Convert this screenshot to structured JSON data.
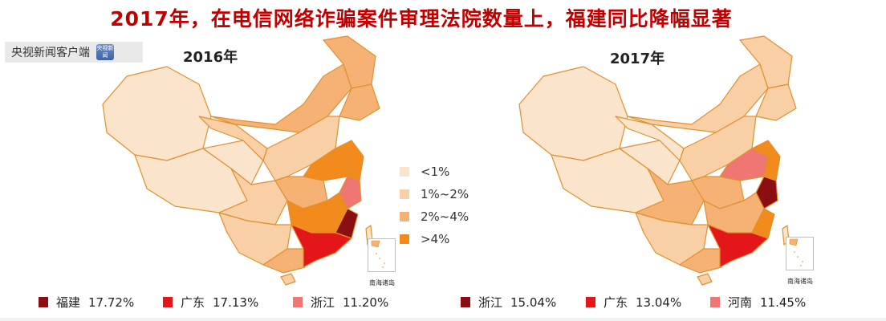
{
  "title": "2017年，在电信网络诈骗案件审理法院数量上，福建同比降幅显著",
  "source": {
    "label": "央视新闻客户端",
    "logo_text": "央视新闻",
    "icon": "cctv-news-logo"
  },
  "colors": {
    "lt1": "#fbe4cc",
    "p1_2": "#f9cfa5",
    "p2_4": "#f6b274",
    "gt4": "#f28a1c",
    "dark_red": "#8b0f12",
    "red": "#e3171a",
    "pink": "#f07673",
    "border": "#e0902f"
  },
  "maps": [
    {
      "year": "2016年",
      "inset_label": "南海诸岛",
      "legend": [
        {
          "name": "福建",
          "value": "17.72%",
          "color": "#8b0f12"
        },
        {
          "name": "广东",
          "value": "17.13%",
          "color": "#e3171a"
        },
        {
          "name": "浙江",
          "value": "11.20%",
          "color": "#f07673"
        }
      ]
    },
    {
      "year": "2017年",
      "inset_label": "南海诸岛",
      "legend": [
        {
          "name": "浙江",
          "value": "15.04%",
          "color": "#8b0f12"
        },
        {
          "name": "广东",
          "value": "13.04%",
          "color": "#e3171a"
        },
        {
          "name": "河南",
          "value": "11.45%",
          "color": "#f07673"
        }
      ]
    }
  ],
  "scale_legend": [
    {
      "label": "<1%",
      "color": "#fbe4cc"
    },
    {
      "label": "1%~2%",
      "color": "#f9cfa5"
    },
    {
      "label": "2%~4%",
      "color": "#f6b274"
    },
    {
      "label": ">4%",
      "color": "#f28a1c"
    }
  ]
}
